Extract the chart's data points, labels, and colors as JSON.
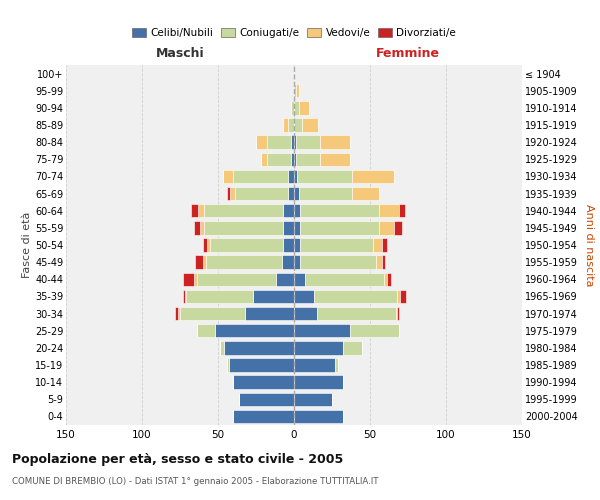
{
  "age_groups": [
    "100+",
    "95-99",
    "90-94",
    "85-89",
    "80-84",
    "75-79",
    "70-74",
    "65-69",
    "60-64",
    "55-59",
    "50-54",
    "45-49",
    "40-44",
    "35-39",
    "30-34",
    "25-29",
    "20-24",
    "15-19",
    "10-14",
    "5-9",
    "0-4"
  ],
  "birth_years": [
    "≤ 1904",
    "1905-1909",
    "1910-1914",
    "1915-1919",
    "1920-1924",
    "1925-1929",
    "1930-1934",
    "1935-1939",
    "1940-1944",
    "1945-1949",
    "1950-1954",
    "1955-1959",
    "1960-1964",
    "1965-1969",
    "1970-1974",
    "1975-1979",
    "1980-1984",
    "1985-1989",
    "1990-1994",
    "1995-1999",
    "2000-2004"
  ],
  "males_celibi": [
    0,
    0,
    0,
    0,
    2,
    2,
    4,
    4,
    7,
    7,
    7,
    8,
    12,
    27,
    32,
    52,
    46,
    43,
    40,
    36,
    40
  ],
  "males_coniugati": [
    0,
    0,
    2,
    4,
    16,
    16,
    36,
    35,
    52,
    52,
    48,
    50,
    52,
    44,
    43,
    12,
    3,
    1,
    0,
    0,
    0
  ],
  "males_vedovi": [
    0,
    0,
    0,
    3,
    7,
    4,
    7,
    3,
    4,
    3,
    2,
    2,
    2,
    1,
    1,
    0,
    0,
    0,
    0,
    0,
    0
  ],
  "males_divorziati": [
    0,
    0,
    0,
    0,
    0,
    0,
    0,
    2,
    5,
    4,
    3,
    5,
    7,
    1,
    2,
    0,
    0,
    0,
    0,
    0,
    0
  ],
  "females_nubili": [
    0,
    0,
    0,
    0,
    1,
    1,
    2,
    3,
    4,
    4,
    4,
    4,
    7,
    13,
    15,
    37,
    32,
    27,
    32,
    25,
    32
  ],
  "females_coniugate": [
    0,
    1,
    3,
    5,
    16,
    16,
    36,
    35,
    52,
    52,
    48,
    50,
    52,
    55,
    52,
    32,
    13,
    2,
    0,
    0,
    0
  ],
  "females_vedove": [
    0,
    2,
    7,
    11,
    20,
    20,
    28,
    18,
    13,
    10,
    6,
    4,
    2,
    2,
    1,
    0,
    0,
    0,
    0,
    0,
    0
  ],
  "females_divorziate": [
    0,
    0,
    0,
    0,
    0,
    0,
    0,
    0,
    4,
    5,
    3,
    2,
    3,
    4,
    1,
    0,
    0,
    0,
    0,
    0,
    0
  ],
  "color_celibi": "#4472a8",
  "color_coniugati": "#c8d9a0",
  "color_vedovi": "#f5c87a",
  "color_divorziati": "#cc2222",
  "title": "Popolazione per età, sesso e stato civile - 2005",
  "subtitle": "COMUNE DI BREMBIO (LO) - Dati ISTAT 1° gennaio 2005 - Elaborazione TUTTITALIA.IT",
  "ylabel_left": "Fasce di età",
  "ylabel_right": "Anni di nascita",
  "label_maschi": "Maschi",
  "label_femmine": "Femmine",
  "xlim": 150,
  "bg_color": "#ffffff",
  "plot_bg": "#f0f0f0",
  "grid_color": "#cccccc",
  "legend_labels": [
    "Celibi/Nubili",
    "Coniugati/e",
    "Vedovi/e",
    "Divorziati/e"
  ]
}
